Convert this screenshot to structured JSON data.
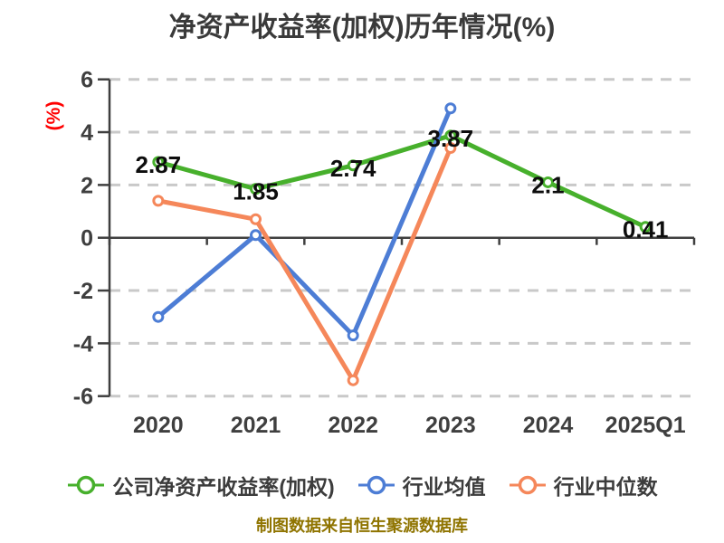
{
  "colors": {
    "background": "#ffffff",
    "title": "#3a3a3a",
    "axis": "#3f3f3f",
    "tick_label": "#3f3f3f",
    "grid": "#c9c9c9",
    "value_label": "#0d0d0d",
    "ylabel": "#ff0000",
    "legend_label": "#3c3c3c",
    "footer": "#8f7400"
  },
  "chart_data": {
    "type": "line",
    "title": "净资产收益率(加权)历年情况(%)",
    "ylabel": "(%)",
    "xlabel": "",
    "categories": [
      "2020",
      "2021",
      "2022",
      "2023",
      "2024",
      "2025Q1"
    ],
    "ylim": [
      -6,
      6
    ],
    "yticks": [
      6,
      4,
      2,
      0,
      -2,
      -4,
      -6
    ],
    "grid": "horizontal dashed, solid zero line",
    "legend_position": "bottom",
    "series": [
      {
        "name": "公司净资产收益率(加权)",
        "color": "#47b02c",
        "values": [
          2.87,
          1.85,
          2.74,
          3.87,
          2.1,
          0.41
        ],
        "labels": [
          "2.87",
          "1.85",
          "2.74",
          "3.87",
          "2.1",
          "0.41"
        ]
      },
      {
        "name": "行业均值",
        "color": "#4d7dd5",
        "values": [
          -3.0,
          0.1,
          -3.7,
          4.9,
          null,
          null
        ],
        "labels": null
      },
      {
        "name": "行业中位数",
        "color": "#f5875a",
        "values": [
          1.4,
          0.7,
          -5.4,
          3.4,
          null,
          null
        ],
        "labels": null
      }
    ],
    "footer": "制图数据来自恒生聚源数据库"
  }
}
